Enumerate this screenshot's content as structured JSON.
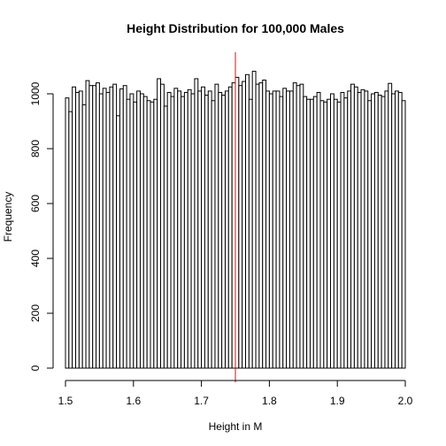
{
  "chart_data": {
    "type": "bar",
    "title": "Height Distribution for 100,000 Males",
    "xlabel": "Height in M",
    "ylabel": "Frequency",
    "xlim": [
      1.5,
      2.0
    ],
    "ylim": [
      0,
      1100
    ],
    "x_ticks": [
      "1.5",
      "1.6",
      "1.7",
      "1.8",
      "1.9",
      "2.0"
    ],
    "y_ticks": [
      "0",
      "200",
      "400",
      "600",
      "800",
      "1000"
    ],
    "bin_width": 0.005,
    "grid": false,
    "legend": "none",
    "bar_fill": "#ffffff",
    "bar_stroke": "#000000",
    "reference_line": {
      "x": 1.75,
      "color": "#ff0000"
    },
    "bins_start": 1.5,
    "values": [
      985,
      935,
      1025,
      1005,
      1010,
      960,
      1048,
      1030,
      1030,
      1040,
      1000,
      1020,
      1005,
      1025,
      1035,
      920,
      1018,
      1030,
      980,
      1000,
      970,
      1010,
      1000,
      990,
      975,
      970,
      980,
      1055,
      1035,
      955,
      1005,
      990,
      1020,
      1010,
      990,
      1005,
      1015,
      1000,
      1055,
      1010,
      1025,
      995,
      1010,
      975,
      1035,
      1005,
      995,
      1010,
      1025,
      1040,
      1060,
      1030,
      1045,
      1070,
      980,
      1082,
      1035,
      1040,
      1050,
      1010,
      1000,
      1010,
      1010,
      990,
      1020,
      1010,
      1010,
      1040,
      1030,
      1035,
      990,
      980,
      980,
      990,
      1005,
      975,
      970,
      980,
      1000,
      980,
      970,
      1005,
      985,
      1010,
      1035,
      1025,
      1005,
      1015,
      1010,
      975,
      1000,
      1005,
      995,
      990,
      1010,
      1038,
      1000,
      1010,
      1005,
      975
    ]
  }
}
